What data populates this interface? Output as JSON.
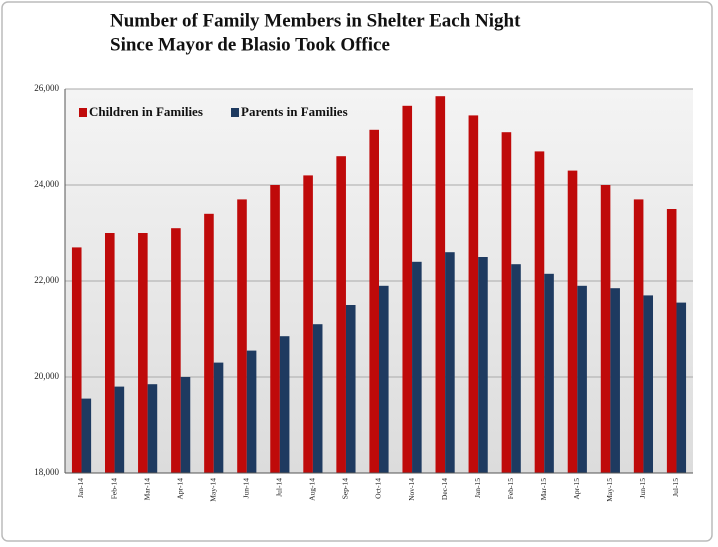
{
  "chart_data": {
    "type": "bar",
    "title": [
      "Number of Family Members in Shelter Each Night",
      "Since Mayor de Blasio Took Office"
    ],
    "categories": [
      "Jan-14",
      "Feb-14",
      "Mar-14",
      "Apr-14",
      "May-14",
      "Jun-14",
      "Jul-14",
      "Aug-14",
      "Sep-14",
      "Oct-14",
      "Nov-14",
      "Dec-14",
      "Jan-15",
      "Feb-15",
      "Mar-15",
      "Apr-15",
      "May-15",
      "Jun-15",
      "Jul-15"
    ],
    "series": [
      {
        "name": "Children in Families",
        "color": "#bf0a0a",
        "values": [
          22700,
          23000,
          23000,
          23100,
          23400,
          23700,
          24000,
          24200,
          24600,
          25150,
          25650,
          25850,
          25450,
          25100,
          24700,
          24300,
          24000,
          23700,
          23500
        ]
      },
      {
        "name": "Parents in Families",
        "color": "#1e3a60",
        "values": [
          19550,
          19800,
          19850,
          20000,
          20300,
          20550,
          20850,
          21100,
          21500,
          21900,
          22400,
          22600,
          22500,
          22350,
          22150,
          21900,
          21850,
          21700,
          21550
        ]
      }
    ],
    "ylim": [
      18000,
      26000
    ],
    "yticks": [
      {
        "value": 18000,
        "label": "18,000"
      },
      {
        "value": 20000,
        "label": "20,000"
      },
      {
        "value": 22000,
        "label": "22,000"
      },
      {
        "value": 24000,
        "label": "24,000"
      },
      {
        "value": 26000,
        "label": "26,000"
      }
    ],
    "grid": true,
    "legend": "top-left"
  }
}
